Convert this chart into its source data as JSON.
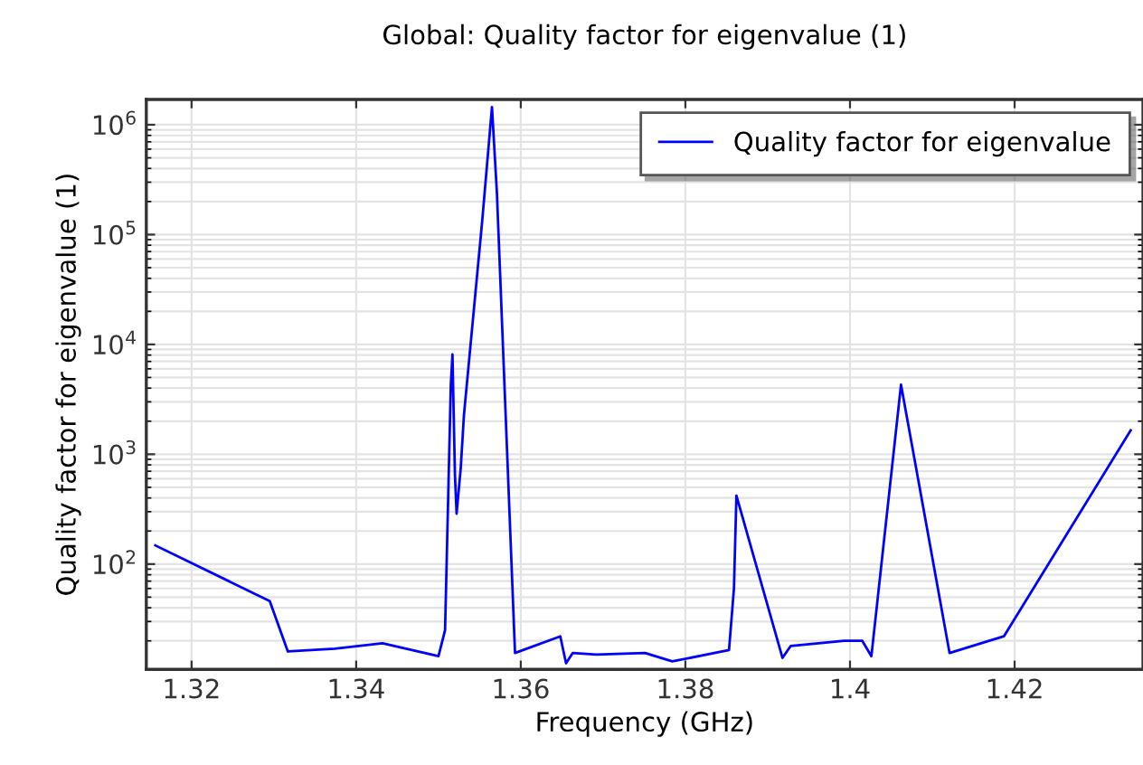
{
  "chart_data": {
    "type": "line",
    "title": "Global: Quality factor for eigenvalue (1)",
    "xlabel": "Frequency (GHz)",
    "ylabel": "Quality factor for eigenvalue (1)",
    "log": "y",
    "grid": true,
    "legend": "top right",
    "marker": "none",
    "line_style": "solid",
    "xlim": [
      1.3145,
      1.4356
    ],
    "ylim": [
      11,
      1700000
    ],
    "xticks": [
      1.32,
      1.34,
      1.36,
      1.38,
      {
        "value": 1.4,
        "label": "1.4"
      },
      1.42
    ],
    "yticks": [
      {
        "value": 100,
        "label": "10$^{2}$"
      },
      {
        "value": 1000,
        "label": "10$^{3}$"
      },
      {
        "value": 10000,
        "label": "10$^{4}$"
      },
      {
        "value": 100000,
        "label": "10$^{5}$"
      },
      {
        "value": 1000000,
        "label": "10$^{6}$"
      }
    ],
    "series": [
      {
        "name": "Quality factor for eigenvalue",
        "color": "#0000ff",
        "x": [
          1.3156,
          1.3295,
          1.3317,
          1.3374,
          1.3432,
          1.35,
          1.3508,
          1.3515,
          1.3517,
          1.352,
          1.3522,
          1.3527,
          1.3531,
          1.3553,
          1.3565,
          1.3571,
          1.3593,
          1.3648,
          1.3655,
          1.3663,
          1.3692,
          1.3751,
          1.3784,
          1.3853,
          1.3859,
          1.3862,
          1.3918,
          1.3928,
          1.3993,
          1.4015,
          1.4026,
          1.4062,
          1.4121,
          1.4187,
          1.4341
        ],
        "values": [
          148,
          46,
          16,
          17,
          19,
          14.5,
          25,
          4300,
          8100,
          650,
          288,
          740,
          2300,
          130000,
          1450000,
          240000,
          15.5,
          22,
          12.5,
          15.5,
          15,
          15.5,
          13,
          16.5,
          60,
          420,
          14,
          18,
          20,
          20,
          14.5,
          4300,
          15.5,
          22,
          1650
        ]
      }
    ]
  }
}
